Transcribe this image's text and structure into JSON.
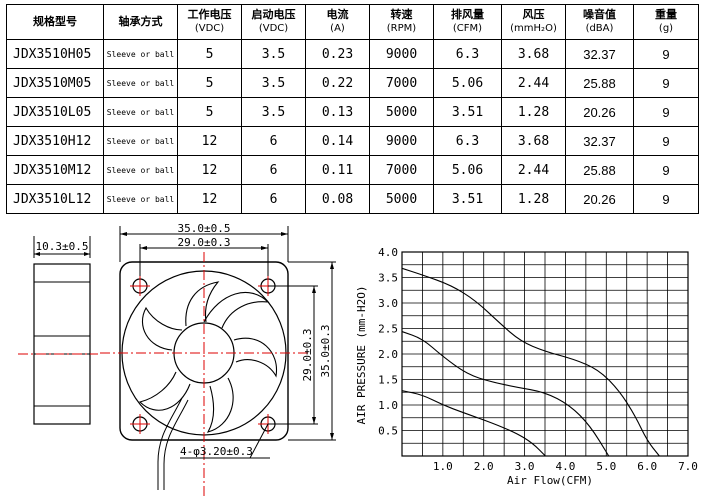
{
  "table": {
    "headers": [
      {
        "title": "规格型号",
        "sub": ""
      },
      {
        "title": "轴承方式",
        "sub": ""
      },
      {
        "title": "工作电压",
        "sub": "(VDC)"
      },
      {
        "title": "启动电压",
        "sub": "(VDC)"
      },
      {
        "title": "电流",
        "sub": "(A)"
      },
      {
        "title": "转速",
        "sub": "(RPM)"
      },
      {
        "title": "排风量",
        "sub": "(CFM)"
      },
      {
        "title": "风压",
        "sub": "(mmH₂O)"
      },
      {
        "title": "噪音值",
        "sub": "(dBA)"
      },
      {
        "title": "重量",
        "sub": "(g)"
      }
    ],
    "rows": [
      {
        "model": "JDX3510H05",
        "bearing": "Sleeve or ball",
        "voltage": "5",
        "start": "3.5",
        "current": "0.23",
        "speed": "9000",
        "airflow": "6.3",
        "pressure": "3.68",
        "noise": "32.37",
        "weight": "9"
      },
      {
        "model": "JDX3510M05",
        "bearing": "Sleeve or ball",
        "voltage": "5",
        "start": "3.5",
        "current": "0.22",
        "speed": "7000",
        "airflow": "5.06",
        "pressure": "2.44",
        "noise": "25.88",
        "weight": "9"
      },
      {
        "model": "JDX3510L05",
        "bearing": "Sleeve or ball",
        "voltage": "5",
        "start": "3.5",
        "current": "0.13",
        "speed": "5000",
        "airflow": "3.51",
        "pressure": "1.28",
        "noise": "20.26",
        "weight": "9"
      },
      {
        "model": "JDX3510H12",
        "bearing": "Sleeve or ball",
        "voltage": "12",
        "start": "6",
        "current": "0.14",
        "speed": "9000",
        "airflow": "6.3",
        "pressure": "3.68",
        "noise": "32.37",
        "weight": "9"
      },
      {
        "model": "JDX3510M12",
        "bearing": "Sleeve or ball",
        "voltage": "12",
        "start": "6",
        "current": "0.11",
        "speed": "7000",
        "airflow": "5.06",
        "pressure": "2.44",
        "noise": "25.88",
        "weight": "9"
      },
      {
        "model": "JDX3510L12",
        "bearing": "Sleeve or ball",
        "voltage": "12",
        "start": "6",
        "current": "0.08",
        "speed": "5000",
        "airflow": "3.51",
        "pressure": "1.28",
        "noise": "20.26",
        "weight": "9"
      }
    ]
  },
  "drawing": {
    "side_width": "10.3±0.5",
    "outer_width": "35.0±0.5",
    "hole_spacing_h": "29.0±0.3",
    "hole_spacing_v": "29.0±0.3",
    "outer_height": "35.0±0.3",
    "holes": "4-φ3.20±0.3"
  },
  "chart_data": {
    "type": "line",
    "xlabel": "Air Flow(CFM)",
    "ylabel": "AIR PRESSURE (mm-H2O)",
    "xlim": [
      0,
      7
    ],
    "ylim": [
      0,
      4
    ],
    "x_ticks": [
      "1.0",
      "2.0",
      "3.0",
      "4.0",
      "5.0",
      "6.0",
      "7.0"
    ],
    "y_ticks": [
      "0.5",
      "1.0",
      "1.5",
      "2.0",
      "2.5",
      "3.0",
      "3.5",
      "4.0"
    ],
    "grid": true,
    "series": [
      {
        "points": [
          [
            0,
            3.68
          ],
          [
            0.5,
            3.55
          ],
          [
            1.2,
            3.35
          ],
          [
            1.8,
            3.05
          ],
          [
            2.4,
            2.6
          ],
          [
            2.9,
            2.25
          ],
          [
            3.5,
            2.05
          ],
          [
            4.2,
            1.9
          ],
          [
            4.8,
            1.7
          ],
          [
            5.3,
            1.3
          ],
          [
            5.7,
            0.8
          ],
          [
            6.0,
            0.3
          ],
          [
            6.3,
            0
          ]
        ]
      },
      {
        "points": [
          [
            0,
            2.44
          ],
          [
            0.5,
            2.3
          ],
          [
            1.0,
            1.95
          ],
          [
            1.6,
            1.6
          ],
          [
            2.2,
            1.45
          ],
          [
            2.8,
            1.35
          ],
          [
            3.5,
            1.25
          ],
          [
            4.1,
            1.0
          ],
          [
            4.6,
            0.6
          ],
          [
            5.06,
            0
          ]
        ]
      },
      {
        "points": [
          [
            0,
            1.28
          ],
          [
            0.5,
            1.2
          ],
          [
            1.0,
            1.0
          ],
          [
            1.5,
            0.85
          ],
          [
            2.2,
            0.65
          ],
          [
            2.8,
            0.45
          ],
          [
            3.2,
            0.25
          ],
          [
            3.51,
            0
          ]
        ]
      }
    ]
  }
}
